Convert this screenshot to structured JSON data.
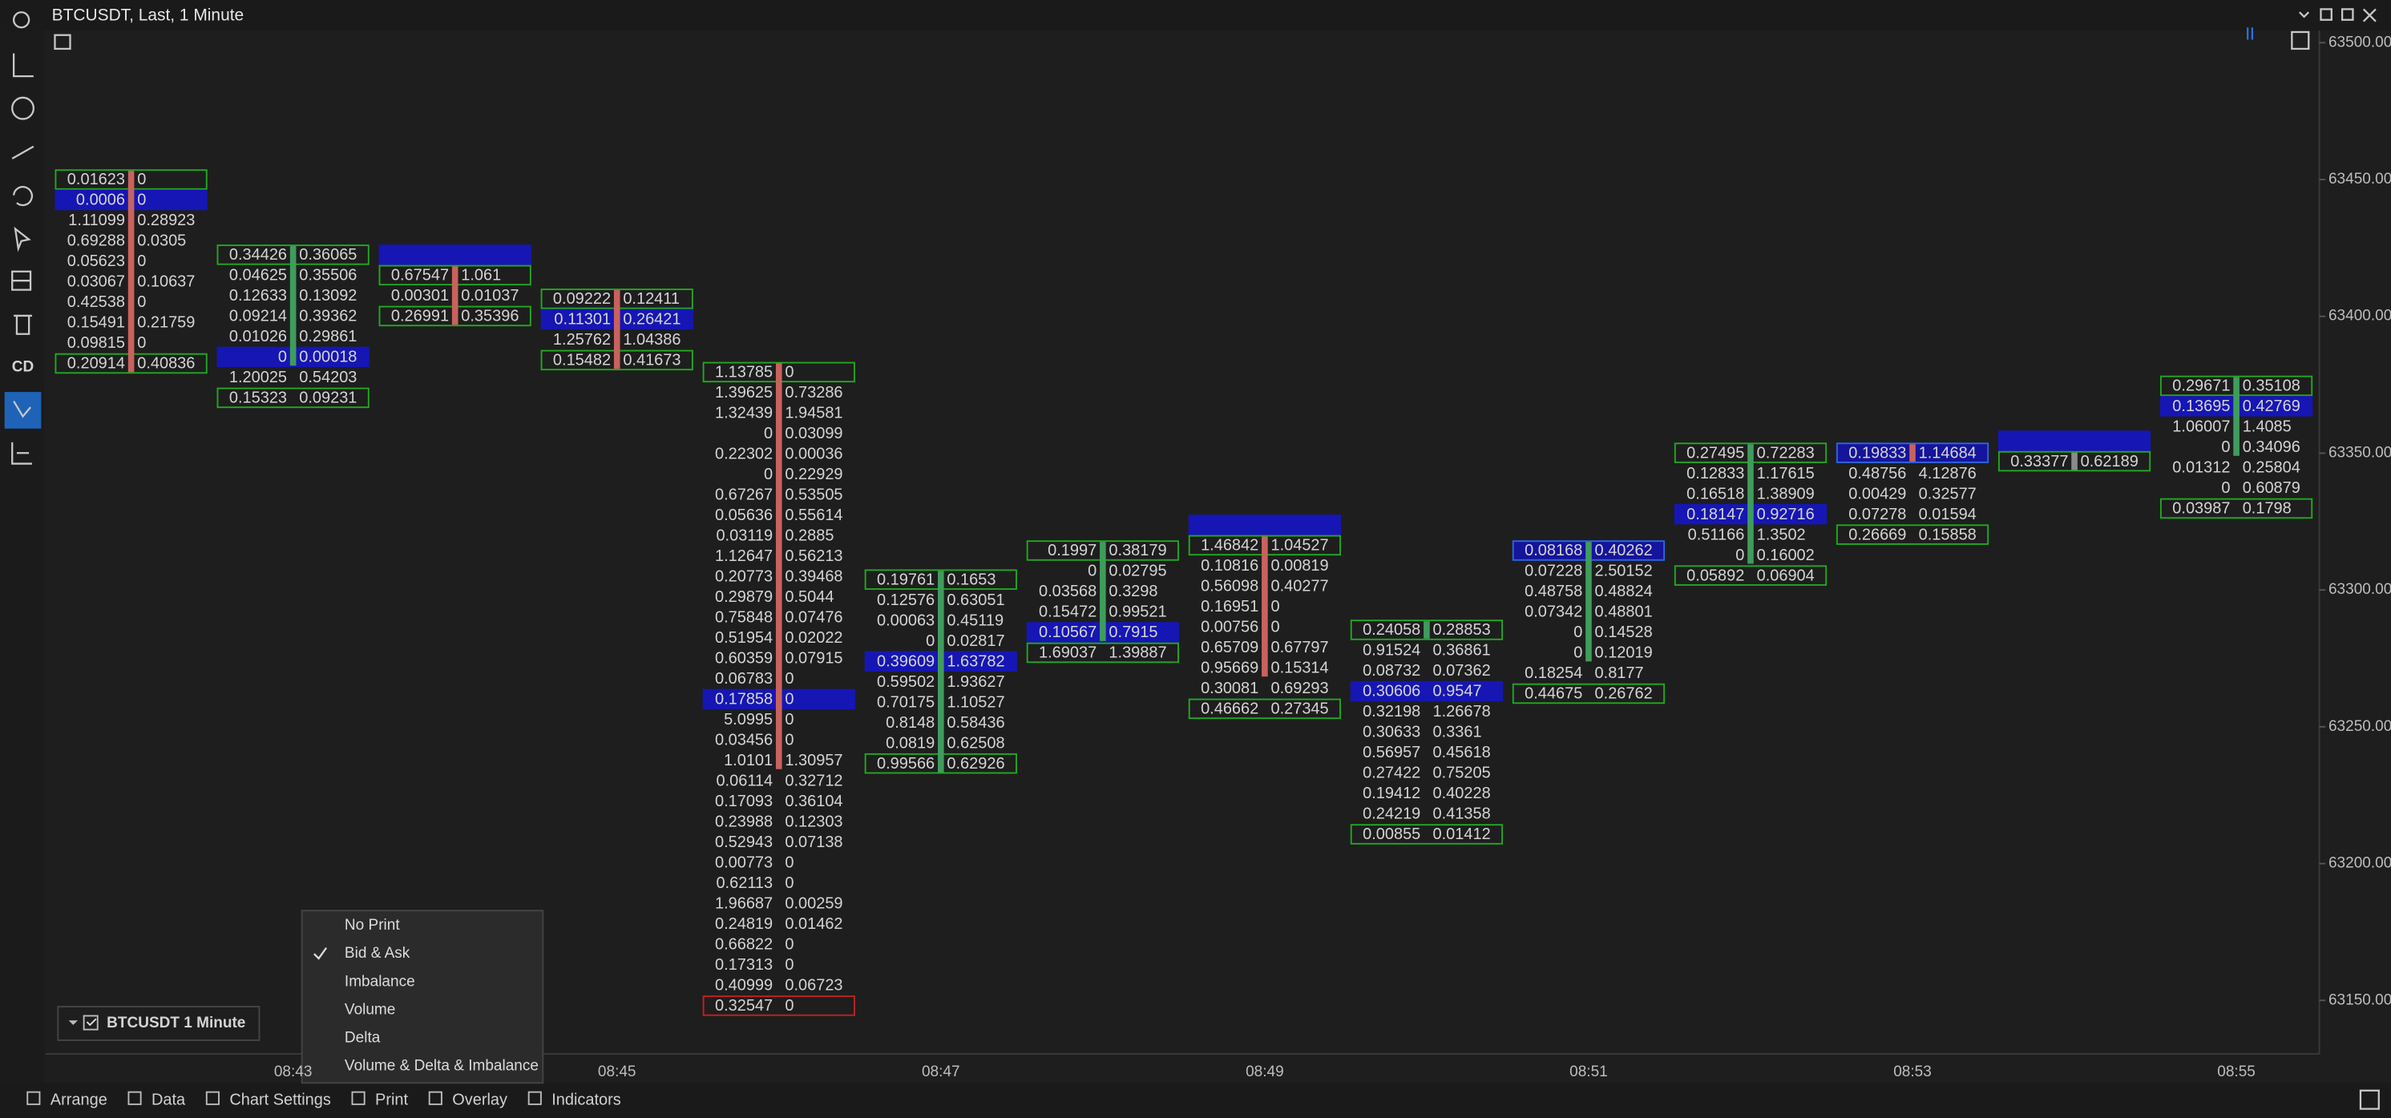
{
  "window": {
    "title": "BTCUSDT, Last, 1 Minute"
  },
  "toolbar": {
    "cd_label": "CD"
  },
  "price_axis": {
    "ticks": [
      {
        "value": 63500,
        "label": "63500.00"
      },
      {
        "value": 63450,
        "label": "63450.00"
      },
      {
        "value": 63400,
        "label": "63400.00"
      },
      {
        "value": 63350,
        "label": "63350.00"
      },
      {
        "value": 63300,
        "label": "63300.00"
      },
      {
        "value": 63250,
        "label": "63250.00"
      },
      {
        "value": 63200,
        "label": "63200.00"
      },
      {
        "value": 63150,
        "label": "63150.00"
      }
    ]
  },
  "time_axis": {
    "labels": [
      null,
      "08:43",
      null,
      "08:45",
      null,
      "08:47",
      null,
      "08:49",
      null,
      "08:51",
      null,
      "08:53",
      null,
      "08:55"
    ]
  },
  "columns": [
    {
      "price_top": 63450,
      "candle_color": "#c9625d",
      "body_rows": [
        0,
        9
      ],
      "rows": [
        {
          "bid": 0.01623,
          "ask": 0,
          "box": "#22a822"
        },
        {
          "bid": 0.0006,
          "ask": 0,
          "fill": "#1616b4"
        },
        {
          "bid": 1.11099,
          "ask": 0.28923
        },
        {
          "bid": 0.69288,
          "ask": 0.0305
        },
        {
          "bid": 0.05623,
          "ask": 0
        },
        {
          "bid": 0.03067,
          "ask": 0.10637
        },
        {
          "bid": 0.42538,
          "ask": 0
        },
        {
          "bid": 0.15491,
          "ask": 0.21759
        },
        {
          "bid": 0.09815,
          "ask": 0
        },
        {
          "bid": 0.20914,
          "ask": 0.40836,
          "box": "#22a822"
        }
      ]
    },
    {
      "price_top": 63422.5,
      "candle_color": "#3f9c5c",
      "body_rows": [
        0,
        5
      ],
      "rows": [
        {
          "bid": 0.34426,
          "ask": 0.36065,
          "box": "#22a822"
        },
        {
          "bid": 0.04625,
          "ask": 0.35506
        },
        {
          "bid": 0.12633,
          "ask": 0.13092
        },
        {
          "bid": 0.09214,
          "ask": 0.39362
        },
        {
          "bid": 0.01026,
          "ask": 0.29861
        },
        {
          "bid": 0,
          "ask": 0.00018,
          "fill": "#1616b4"
        },
        {
          "bid": 1.20025,
          "ask": 0.54203
        },
        {
          "bid": 0.15323,
          "ask": 0.09231,
          "box": "#22a822"
        }
      ]
    },
    {
      "price_top": 63422.5,
      "candle_color": "#c9625d",
      "body_rows": [
        1,
        3
      ],
      "rows": [
        {
          "fill": "#1616b4"
        },
        {
          "bid": 0.67547,
          "ask": 1.061,
          "box": "#22a822"
        },
        {
          "bid": 0.00301,
          "ask": 0.01037
        },
        {
          "bid": 0.26991,
          "ask": 0.35396,
          "box": "#22a822"
        }
      ]
    },
    {
      "price_top": 63406.4,
      "candle_color": "#c9625d",
      "body_rows": [
        0,
        3
      ],
      "rows": [
        {
          "bid": 0.09222,
          "ask": 0.12411,
          "box": "#22a822"
        },
        {
          "bid": 0.11301,
          "ask": 0.26421,
          "fill": "#1616b4"
        },
        {
          "bid": 1.25762,
          "ask": 1.04386
        },
        {
          "bid": 0.15482,
          "ask": 0.41673,
          "box": "#22a822"
        }
      ]
    },
    {
      "price_top": 63379.6,
      "candle_color": "#c9625d",
      "body_rows": [
        0,
        19
      ],
      "rows": [
        {
          "bid": 1.13785,
          "ask": 0,
          "box": "#22a822"
        },
        {
          "bid": 1.39625,
          "ask": 0.73286
        },
        {
          "bid": 1.32439,
          "ask": 1.94581
        },
        {
          "bid": 0,
          "ask": 0.03099
        },
        {
          "bid": 0.22302,
          "ask": 0.00036
        },
        {
          "bid": 0,
          "ask": 0.22929
        },
        {
          "bid": 0.67267,
          "ask": 0.53505
        },
        {
          "bid": 0.05636,
          "ask": 0.55614
        },
        {
          "bid": 0.03119,
          "ask": 0.2885
        },
        {
          "bid": 1.12647,
          "ask": 0.56213
        },
        {
          "bid": 0.20773,
          "ask": 0.39468
        },
        {
          "bid": 0.29879,
          "ask": 0.5044
        },
        {
          "bid": 0.75848,
          "ask": 0.07476
        },
        {
          "bid": 0.51954,
          "ask": 0.02022
        },
        {
          "bid": 0.60359,
          "ask": 0.07915
        },
        {
          "bid": 0.06783,
          "ask": 0
        },
        {
          "bid": 0.17858,
          "ask": 0,
          "fill": "#1616b4"
        },
        {
          "bid": 5.0995,
          "ask": 0
        },
        {
          "bid": 0.03456,
          "ask": 0
        },
        {
          "bid": 1.0101,
          "ask": 1.30957
        },
        {
          "bid": 0.06114,
          "ask": 0.32712
        },
        {
          "bid": 0.17093,
          "ask": 0.36104
        },
        {
          "bid": 0.23988,
          "ask": 0.12303
        },
        {
          "bid": 0.52943,
          "ask": 0.07138
        },
        {
          "bid": 0.00773,
          "ask": 0
        },
        {
          "bid": 0.62113,
          "ask": 0
        },
        {
          "bid": 1.96687,
          "ask": 0.00259
        },
        {
          "bid": 0.24819,
          "ask": 0.01462
        },
        {
          "bid": 0.66822,
          "ask": 0
        },
        {
          "bid": 0.17313,
          "ask": 0
        },
        {
          "bid": 0.40999,
          "ask": 0.06723
        },
        {
          "bid": 0.32547,
          "ask": 0,
          "box": "#c42020"
        }
      ]
    },
    {
      "price_top": 63303.8,
      "candle_color": "#3f9c5c",
      "body_rows": [
        0,
        9
      ],
      "rows": [
        {
          "bid": 0.19761,
          "ask": 0.1653,
          "box": "#22a822"
        },
        {
          "bid": 0.12576,
          "ask": 0.63051
        },
        {
          "bid": 0.00063,
          "ask": 0.45119
        },
        {
          "bid": 0,
          "ask": 0.02817
        },
        {
          "bid": 0.39609,
          "ask": 1.63782,
          "fill": "#1616b4"
        },
        {
          "bid": 0.59502,
          "ask": 1.93627
        },
        {
          "bid": 0.70175,
          "ask": 1.10527
        },
        {
          "bid": 0.8148,
          "ask": 0.58436
        },
        {
          "bid": 0.0819,
          "ask": 0.62508
        },
        {
          "bid": 0.99566,
          "ask": 0.62926,
          "box": "#22a822"
        }
      ]
    },
    {
      "price_top": 63314.4,
      "candle_color": "#3f9c5c",
      "body_rows": [
        0,
        4
      ],
      "rows": [
        {
          "bid": 0.1997,
          "ask": 0.38179,
          "box": "#22a822"
        },
        {
          "bid": 0,
          "ask": 0.02795
        },
        {
          "bid": 0.03568,
          "ask": 0.3298
        },
        {
          "bid": 0.15472,
          "ask": 0.99521
        },
        {
          "bid": 0.10567,
          "ask": 0.7915,
          "fill": "#1616b4"
        },
        {
          "bid": 1.69037,
          "ask": 1.39887,
          "box": "#22a822"
        }
      ]
    },
    {
      "price_top": 63323.8,
      "candle_color": "#c9625d",
      "body_rows": [
        1,
        7
      ],
      "rows": [
        {
          "fill": "#1616b4"
        },
        {
          "bid": 1.46842,
          "ask": 1.04527,
          "box": "#22a822"
        },
        {
          "bid": 0.10816,
          "ask": 0.00819
        },
        {
          "bid": 0.56098,
          "ask": 0.40277
        },
        {
          "bid": 0.16951,
          "ask": 0
        },
        {
          "bid": 0.00756,
          "ask": 0
        },
        {
          "bid": 0.65709,
          "ask": 0.67797
        },
        {
          "bid": 0.95669,
          "ask": 0.15314
        },
        {
          "bid": 0.30081,
          "ask": 0.69293
        },
        {
          "bid": 0.46662,
          "ask": 0.27345,
          "box": "#22a822"
        }
      ]
    },
    {
      "price_top": 63285.4,
      "candle_color": "#3f9c5c",
      "body_rows": [
        0,
        0
      ],
      "rows": [
        {
          "bid": 0.24058,
          "ask": 0.28853,
          "box": "#22a822"
        },
        {
          "bid": 0.91524,
          "ask": 0.36861
        },
        {
          "bid": 0.08732,
          "ask": 0.07362
        },
        {
          "bid": 0.30606,
          "ask": 0.9547,
          "fill": "#1616b4"
        },
        {
          "bid": 0.32198,
          "ask": 1.26678
        },
        {
          "bid": 0.30633,
          "ask": 0.3361
        },
        {
          "bid": 0.56957,
          "ask": 0.45618
        },
        {
          "bid": 0.27422,
          "ask": 0.75205
        },
        {
          "bid": 0.19412,
          "ask": 0.40228
        },
        {
          "bid": 0.24219,
          "ask": 0.41358
        },
        {
          "bid": 0.00855,
          "ask": 0.01412,
          "box": "#22a822"
        }
      ]
    },
    {
      "price_top": 63314.4,
      "candle_color": "#3f9c5c",
      "body_rows": [
        0,
        5
      ],
      "rows": [
        {
          "bid": 0.08168,
          "ask": 0.40262,
          "fill": "#14149c",
          "box": "#2f66d8"
        },
        {
          "bid": 0.07228,
          "ask": 2.50152
        },
        {
          "bid": 0.48758,
          "ask": 0.48824
        },
        {
          "bid": 0.07342,
          "ask": 0.48801
        },
        {
          "bid": 0,
          "ask": 0.14528
        },
        {
          "bid": 0,
          "ask": 0.12019
        },
        {
          "bid": 0.18254,
          "ask": 0.8177
        },
        {
          "bid": 0.44675,
          "ask": 0.26762,
          "box": "#22a822"
        }
      ]
    },
    {
      "price_top": 63350.1,
      "candle_color": "#3f9c5c",
      "body_rows": [
        0,
        5
      ],
      "rows": [
        {
          "bid": 0.27495,
          "ask": 0.72283,
          "box": "#22a822"
        },
        {
          "bid": 0.12833,
          "ask": 1.17615
        },
        {
          "bid": 0.16518,
          "ask": 1.38909
        },
        {
          "bid": 0.18147,
          "ask": 0.92716,
          "fill": "#1616b4"
        },
        {
          "bid": 0.51166,
          "ask": 1.3502
        },
        {
          "bid": 0,
          "ask": 0.16002
        },
        {
          "bid": 0.05892,
          "ask": 0.06904,
          "box": "#22a822"
        }
      ]
    },
    {
      "price_top": 63350.1,
      "candle_color": "#c9625d",
      "body_rows": [
        0,
        0
      ],
      "rows": [
        {
          "bid": 0.19833,
          "ask": 1.14684,
          "fill": "#14149c",
          "box": "#2f66d8"
        },
        {
          "bid": 0.48756,
          "ask": 4.12876
        },
        {
          "bid": 0.00429,
          "ask": 0.32577
        },
        {
          "bid": 0.07278,
          "ask": 0.01594
        },
        {
          "bid": 0.26669,
          "ask": 0.15858,
          "box": "#22a822"
        }
      ]
    },
    {
      "price_top": 63354.5,
      "candle_color": "#8a8a8a",
      "body_rows": [
        1,
        1
      ],
      "rows": [
        {
          "fill": "#1616b4"
        },
        {
          "bid": 0.33377,
          "ask": 0.62189,
          "box": "#22a822"
        }
      ]
    },
    {
      "price_top": 63374.6,
      "candle_color": "#3f9c5c",
      "body_rows": [
        0,
        3
      ],
      "rows": [
        {
          "bid": 0.29671,
          "ask": 0.35108,
          "box": "#22a822"
        },
        {
          "bid": 0.13695,
          "ask": 0.42769,
          "fill": "#1616b4"
        },
        {
          "bid": 1.06007,
          "ask": 1.4085
        },
        {
          "bid": 0,
          "ask": 0.34096
        },
        {
          "bid": 0.01312,
          "ask": 0.25804
        },
        {
          "bid": 0,
          "ask": 0.60879
        },
        {
          "bid": 0.03987,
          "ask": 0.1798,
          "box": "#22a822"
        }
      ]
    }
  ],
  "legend": {
    "label": "BTCUSDT 1 Minute"
  },
  "print_menu": {
    "items": [
      "No Print",
      "Bid & Ask",
      "Imbalance",
      "Volume",
      "Delta",
      "Volume & Delta & Imbalance"
    ],
    "checked_item": 1
  },
  "bottom_toolbar": {
    "items": [
      "Arrange",
      "Data",
      "Chart Settings",
      "Print",
      "Overlay",
      "Indicators"
    ]
  }
}
